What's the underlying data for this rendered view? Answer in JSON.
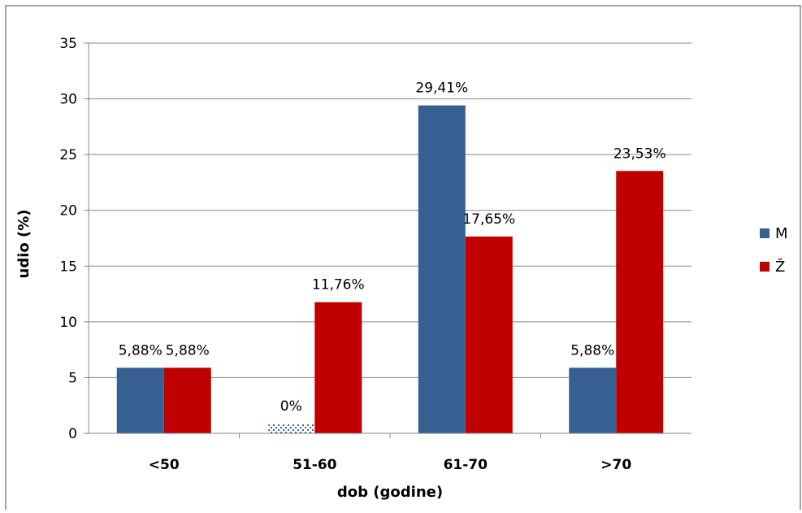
{
  "chart_data": {
    "type": "bar",
    "title": "",
    "xlabel": "dob (godine)",
    "ylabel": "udio (%)",
    "ylim": [
      0,
      35
    ],
    "yticks": [
      0,
      5,
      10,
      15,
      20,
      25,
      30,
      35
    ],
    "categories": [
      "<50",
      "51-60",
      "61-70",
      ">70"
    ],
    "series": [
      {
        "name": "M",
        "color": "#376092",
        "values": [
          5.88,
          0,
          29.41,
          5.88
        ],
        "labels": [
          "5,88%",
          "0%",
          "29,41%",
          "5,88%"
        ]
      },
      {
        "name": "Ž",
        "color": "#c00000",
        "values": [
          5.88,
          11.76,
          17.65,
          23.53
        ],
        "labels": [
          "5,88%",
          "11,76%",
          "17,65%",
          "23,53%"
        ]
      }
    ],
    "grid": true,
    "legend_position": "right"
  }
}
